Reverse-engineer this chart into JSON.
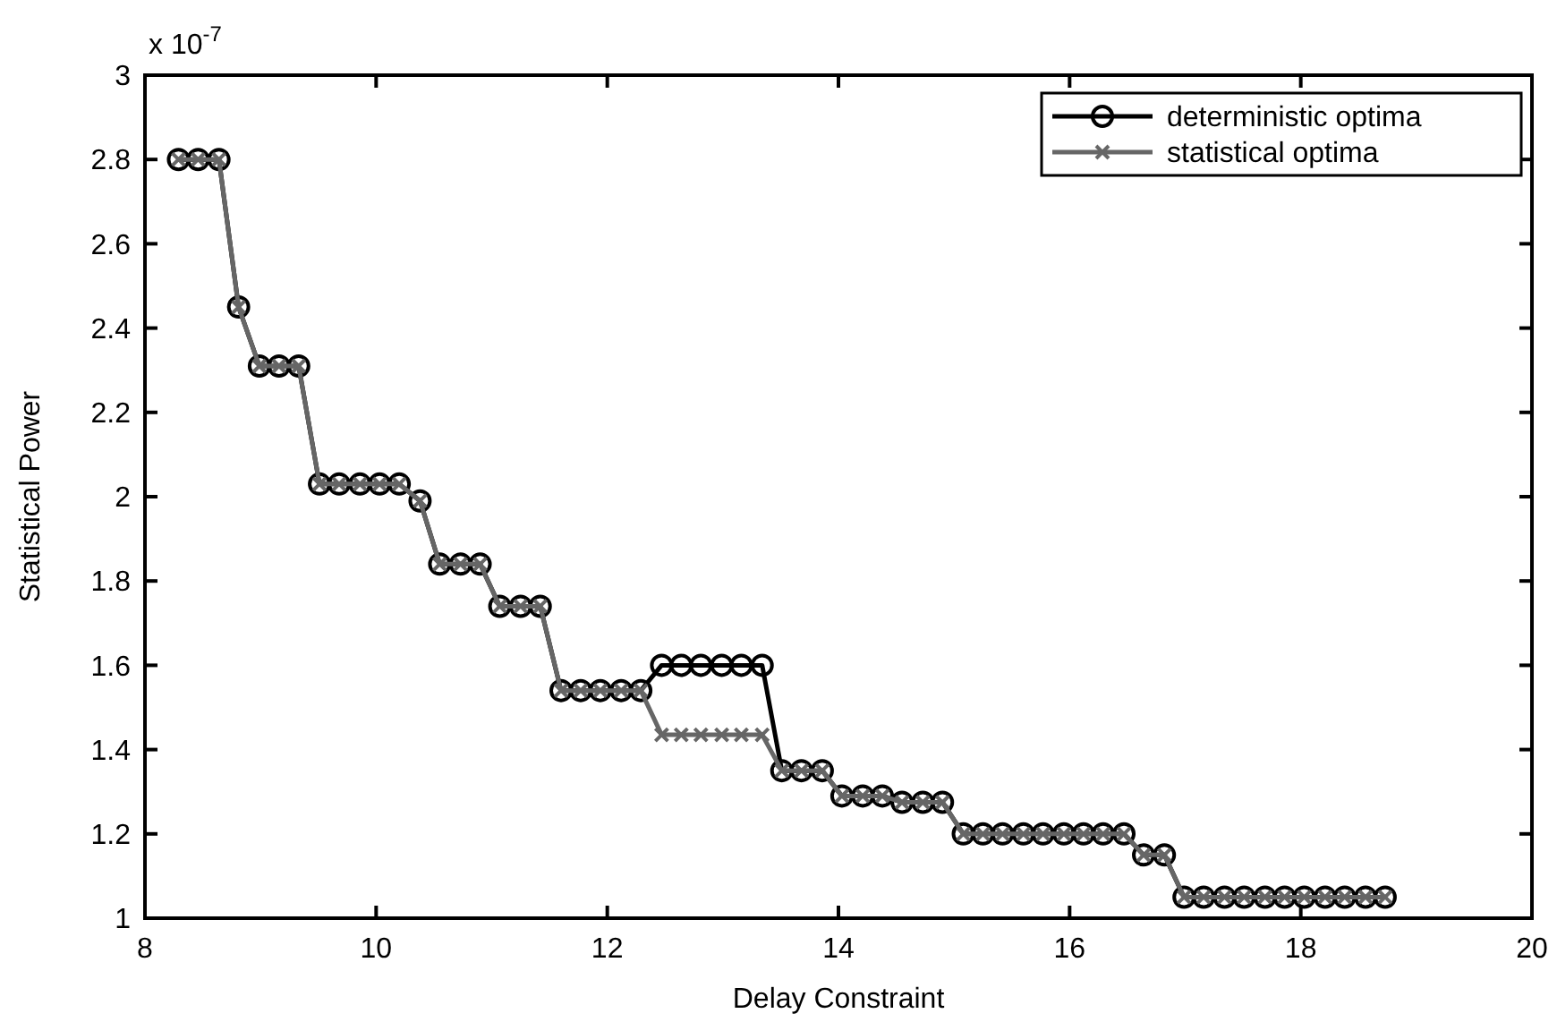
{
  "chart_data": {
    "type": "line",
    "xlabel": "Delay Constraint",
    "ylabel": "Statistical Power",
    "annotations": [
      "x 10$^{-7}$"
    ],
    "x": [
      8.29,
      8.46,
      8.64,
      8.81,
      8.99,
      9.16,
      9.33,
      9.51,
      9.68,
      9.86,
      10.03,
      10.2,
      10.38,
      10.55,
      10.73,
      10.9,
      11.07,
      11.25,
      11.42,
      11.6,
      11.77,
      11.94,
      12.12,
      12.29,
      12.47,
      12.64,
      12.81,
      12.99,
      13.16,
      13.34,
      13.51,
      13.68,
      13.86,
      14.03,
      14.21,
      14.38,
      14.55,
      14.73,
      14.9,
      15.08,
      15.25,
      15.42,
      15.6,
      15.77,
      15.95,
      16.12,
      16.29,
      16.47,
      16.64,
      16.82,
      16.99,
      17.16,
      17.34,
      17.51,
      17.69,
      17.86,
      18.03,
      18.21,
      18.38,
      18.56,
      18.73
    ],
    "series": [
      {
        "name": "deterministic optima",
        "color": "#000000",
        "marker": "circle",
        "values": [
          2.8,
          2.8,
          2.8,
          2.45,
          2.31,
          2.31,
          2.31,
          2.03,
          2.03,
          2.03,
          2.03,
          2.03,
          1.99,
          1.84,
          1.84,
          1.84,
          1.74,
          1.74,
          1.74,
          1.54,
          1.54,
          1.54,
          1.54,
          1.54,
          1.6,
          1.6,
          1.6,
          1.6,
          1.6,
          1.6,
          1.35,
          1.35,
          1.35,
          1.29,
          1.29,
          1.29,
          1.275,
          1.275,
          1.275,
          1.2,
          1.2,
          1.2,
          1.2,
          1.2,
          1.2,
          1.2,
          1.2,
          1.2,
          1.15,
          1.15,
          1.05,
          1.05,
          1.05,
          1.05,
          1.05,
          1.05,
          1.05,
          1.05,
          1.05,
          1.05,
          1.05
        ]
      },
      {
        "name": "statistical optima",
        "color": "#666666",
        "marker": "cross",
        "values": [
          2.8,
          2.8,
          2.8,
          2.45,
          2.31,
          2.31,
          2.31,
          2.03,
          2.03,
          2.03,
          2.03,
          2.03,
          1.99,
          1.84,
          1.84,
          1.84,
          1.74,
          1.74,
          1.74,
          1.54,
          1.54,
          1.54,
          1.54,
          1.54,
          1.435,
          1.435,
          1.435,
          1.435,
          1.435,
          1.435,
          1.35,
          1.35,
          1.35,
          1.29,
          1.29,
          1.29,
          1.275,
          1.275,
          1.275,
          1.2,
          1.2,
          1.2,
          1.2,
          1.2,
          1.2,
          1.2,
          1.2,
          1.2,
          1.15,
          1.15,
          1.05,
          1.05,
          1.05,
          1.05,
          1.05,
          1.05,
          1.05,
          1.05,
          1.05,
          1.05,
          1.05
        ]
      }
    ],
    "xlim": [
      8,
      20
    ],
    "xticks": [
      8,
      10,
      12,
      14,
      16,
      18,
      20
    ],
    "ylim": [
      1,
      3
    ],
    "yticks": [
      1,
      1.2,
      1.4,
      1.6,
      1.8,
      2,
      2.2,
      2.4,
      2.6,
      2.8,
      3
    ],
    "grid": false,
    "legend": "top right",
    "line_style": "solid"
  }
}
